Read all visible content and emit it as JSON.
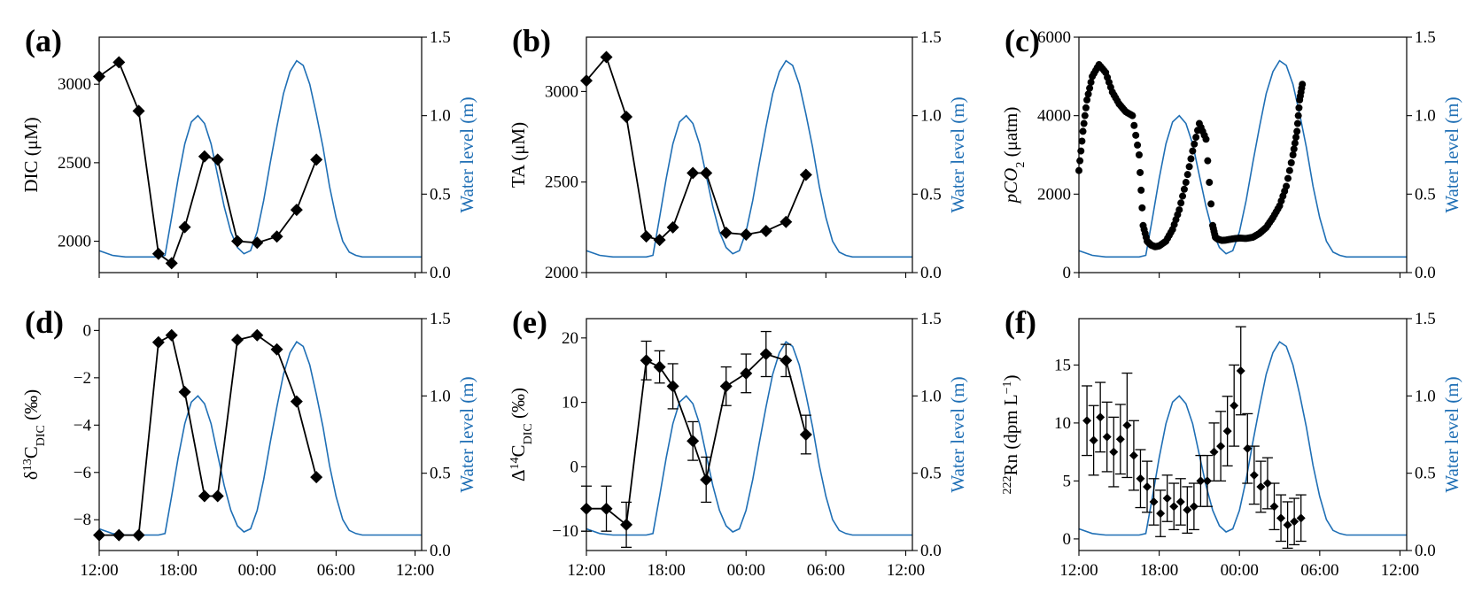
{
  "colors": {
    "water": "#1f6fb5",
    "series": "#000000"
  },
  "x_axis": {
    "ticks": [
      0,
      6,
      12,
      18,
      24
    ],
    "tick_labels": [
      "12:00",
      "18:00",
      "00:00",
      "06:00",
      "12:00"
    ],
    "unit": "hours since 12:00"
  },
  "water_level": {
    "label": "Water level (m)",
    "ticks": [
      0.0,
      0.5,
      1.0,
      1.5
    ],
    "tick_labels": [
      "0.0",
      "0.5",
      "1.0",
      "1.5"
    ],
    "ylim": [
      0,
      1.5
    ],
    "x": [
      0,
      1,
      2,
      3,
      4,
      4.5,
      5,
      5.5,
      6,
      6.5,
      7,
      7.5,
      8,
      8.5,
      9,
      9.5,
      10,
      10.5,
      11,
      11.5,
      12,
      12.5,
      13,
      13.5,
      14,
      14.5,
      15,
      15.5,
      16,
      16.5,
      17,
      17.5,
      18,
      18.5,
      19,
      19.5,
      20,
      20.5,
      21,
      21.5,
      22,
      22.5,
      23,
      23.5,
      24,
      24.5
    ],
    "y": [
      0.14,
      0.11,
      0.1,
      0.1,
      0.1,
      0.1,
      0.11,
      0.35,
      0.6,
      0.82,
      0.96,
      1.0,
      0.95,
      0.82,
      0.62,
      0.42,
      0.26,
      0.16,
      0.12,
      0.14,
      0.26,
      0.46,
      0.7,
      0.93,
      1.14,
      1.28,
      1.35,
      1.32,
      1.2,
      1.01,
      0.8,
      0.55,
      0.35,
      0.2,
      0.13,
      0.11,
      0.1,
      0.1,
      0.1,
      0.1,
      0.1,
      0.1,
      0.1,
      0.1,
      0.1,
      0.1
    ]
  },
  "chart_data": [
    {
      "panel": "(a)",
      "type": "line",
      "ylabel_main": "DIC",
      "ylabel_unit": "(μM)",
      "ylim": [
        1800,
        3300
      ],
      "yticks": [
        2000,
        2500,
        3000
      ],
      "ytick_labels": [
        "2000",
        "2500",
        "3000"
      ],
      "series": [
        {
          "x": [
            0,
            1.5,
            3,
            4.5,
            5.5,
            6.5,
            8,
            9,
            10.5,
            12,
            13.5,
            15,
            16.5
          ],
          "y": [
            3050,
            3140,
            2830,
            1920,
            1860,
            2090,
            2540,
            2520,
            2000,
            1990,
            2030,
            2200,
            2520
          ]
        }
      ],
      "water_level": {
        "x": [
          0,
          1,
          2,
          3,
          4,
          4.5,
          5,
          5.5,
          6,
          6.5,
          7,
          7.5,
          8,
          8.5,
          9,
          9.5,
          10,
          10.5,
          11,
          11.5,
          12,
          12.5,
          13,
          13.5,
          14,
          14.5,
          15,
          15.5,
          16,
          16.5,
          17,
          17.5,
          18,
          18.5,
          19,
          19.5,
          20,
          20.5,
          21,
          21.5,
          22,
          22.5,
          23,
          23.5,
          24,
          24.5
        ],
        "y_ref": "water_level.y"
      }
    },
    {
      "panel": "(b)",
      "type": "line",
      "ylabel_main": "TA",
      "ylabel_unit": "(μM)",
      "ylim": [
        2000,
        3300
      ],
      "yticks": [
        2000,
        2500,
        3000
      ],
      "ytick_labels": [
        "2000",
        "2500",
        "3000"
      ],
      "series": [
        {
          "x": [
            0,
            1.5,
            3,
            4.5,
            5.5,
            6.5,
            8,
            9,
            10.5,
            12,
            13.5,
            15,
            16.5
          ],
          "y": [
            3060,
            3190,
            2860,
            2200,
            2180,
            2250,
            2550,
            2550,
            2220,
            2210,
            2230,
            2280,
            2540
          ]
        }
      ],
      "water_level": {
        "y_ref": "water_level.y"
      }
    },
    {
      "panel": "(c)",
      "type": "scatter",
      "ylabel_main": "pCO",
      "ylabel_sub": "2",
      "ylabel_unit": "(μatm)",
      "ylim": [
        0,
        6000
      ],
      "yticks": [
        0,
        2000,
        4000,
        6000
      ],
      "ytick_labels": [
        "0",
        "2000",
        "4000",
        "6000"
      ],
      "series": [
        {
          "x": [
            0,
            0.3,
            0.6,
            1,
            1.5,
            2,
            2.5,
            3,
            3.5,
            4,
            4.5,
            4.8,
            5.1,
            5.4,
            5.7,
            6,
            6.5,
            7,
            7.5,
            8,
            8.5,
            9,
            9.5,
            10,
            10.2,
            10.4,
            10.7,
            11,
            11.5,
            12,
            12.5,
            13,
            13.5,
            14,
            14.5,
            15,
            15.5,
            16,
            16.3,
            16.5,
            16.7
          ],
          "y": [
            2600,
            3600,
            4400,
            5000,
            5300,
            5100,
            4600,
            4300,
            4100,
            4000,
            3000,
            1200,
            800,
            700,
            660,
            680,
            800,
            1100,
            1600,
            2300,
            3100,
            3800,
            3400,
            1200,
            900,
            850,
            820,
            830,
            860,
            880,
            870,
            900,
            1000,
            1150,
            1400,
            1700,
            2200,
            3000,
            3600,
            4400,
            4800
          ]
        }
      ],
      "water_level": {
        "y_ref": "water_level.y"
      }
    },
    {
      "panel": "(d)",
      "type": "line",
      "ylabel_main": "δ",
      "ylabel_sup": "13",
      "ylabel_main2": "C",
      "ylabel_sub": "DIC",
      "ylabel_unit": "(‰)",
      "ylim": [
        -9.3,
        0.5
      ],
      "yticks": [
        -8,
        -6,
        -4,
        -2,
        0
      ],
      "ytick_labels": [
        "−8",
        "−6",
        "−4",
        "−2",
        "0"
      ],
      "series": [
        {
          "x": [
            0,
            1.5,
            3,
            4.5,
            5.5,
            6.5,
            8,
            9,
            10.5,
            12,
            13.5,
            15,
            16.5
          ],
          "y": [
            -8.65,
            -8.65,
            -8.65,
            -0.5,
            -0.2,
            -2.6,
            -7.0,
            -7.0,
            -0.4,
            -0.2,
            -0.8,
            -3.0,
            -6.2
          ]
        }
      ],
      "water_level": {
        "y_ref": "water_level.y"
      }
    },
    {
      "panel": "(e)",
      "type": "line",
      "ylabel_main": "Δ",
      "ylabel_sup": "14",
      "ylabel_main2": "C",
      "ylabel_sub": "DIC",
      "ylabel_unit": "(‰)",
      "ylim": [
        -13,
        23
      ],
      "yticks": [
        -10,
        0,
        10,
        20
      ],
      "ytick_labels": [
        "−10",
        "0",
        "10",
        "20"
      ],
      "series": [
        {
          "x": [
            0,
            1.5,
            3,
            4.5,
            5.5,
            6.5,
            8,
            9,
            10.5,
            12,
            13.5,
            15,
            16.5
          ],
          "y": [
            -6.5,
            -6.5,
            -9,
            16.5,
            15.5,
            12.5,
            4,
            -2,
            12.5,
            14.5,
            17.5,
            16.5,
            5
          ],
          "err": [
            3.5,
            3.5,
            3.5,
            3,
            2.5,
            3.5,
            3,
            3.5,
            3,
            3,
            3.5,
            2.5,
            3
          ]
        }
      ],
      "water_level": {
        "y_ref": "water_level.y"
      }
    },
    {
      "panel": "(f)",
      "type": "scatter",
      "ylabel_sup": "222",
      "ylabel_main": "Rn",
      "ylabel_unit": "(dpm L",
      "ylabel_unit_sup": "−1",
      "ylabel_unit_end": ")",
      "ylim": [
        -1,
        19
      ],
      "yticks": [
        0,
        5,
        10,
        15
      ],
      "ytick_labels": [
        "0",
        "5",
        "10",
        "15"
      ],
      "series": [
        {
          "x": [
            0.6,
            1.1,
            1.6,
            2.1,
            2.6,
            3.1,
            3.6,
            4.1,
            4.6,
            5.1,
            5.6,
            6.1,
            6.6,
            7.1,
            7.6,
            8.1,
            8.6,
            9.1,
            9.6,
            10.1,
            10.6,
            11.1,
            11.6,
            12.1,
            12.6,
            13.1,
            13.6,
            14.1,
            14.6,
            15.1,
            15.6,
            16.1,
            16.6
          ],
          "y": [
            10.2,
            8.5,
            10.5,
            8.8,
            7.5,
            8.6,
            9.8,
            7.2,
            5.2,
            4.5,
            3.2,
            2.2,
            3.5,
            2.8,
            3.2,
            2.5,
            2.8,
            5.0,
            5.0,
            7.5,
            8.0,
            9.3,
            11.5,
            14.5,
            7.8,
            5.5,
            4.5,
            4.8,
            2.8,
            1.8,
            1.2,
            1.5,
            1.8
          ],
          "err": [
            3,
            3,
            3,
            3,
            3,
            3,
            4.5,
            3,
            2.5,
            2.2,
            2,
            2,
            2,
            2,
            2,
            2,
            2,
            2.2,
            2.2,
            2.5,
            3,
            3,
            3.5,
            3.8,
            3,
            2.5,
            2.2,
            2.2,
            2,
            2,
            2,
            2,
            2
          ]
        }
      ],
      "water_level": {
        "y_ref": "water_level.y"
      }
    }
  ]
}
